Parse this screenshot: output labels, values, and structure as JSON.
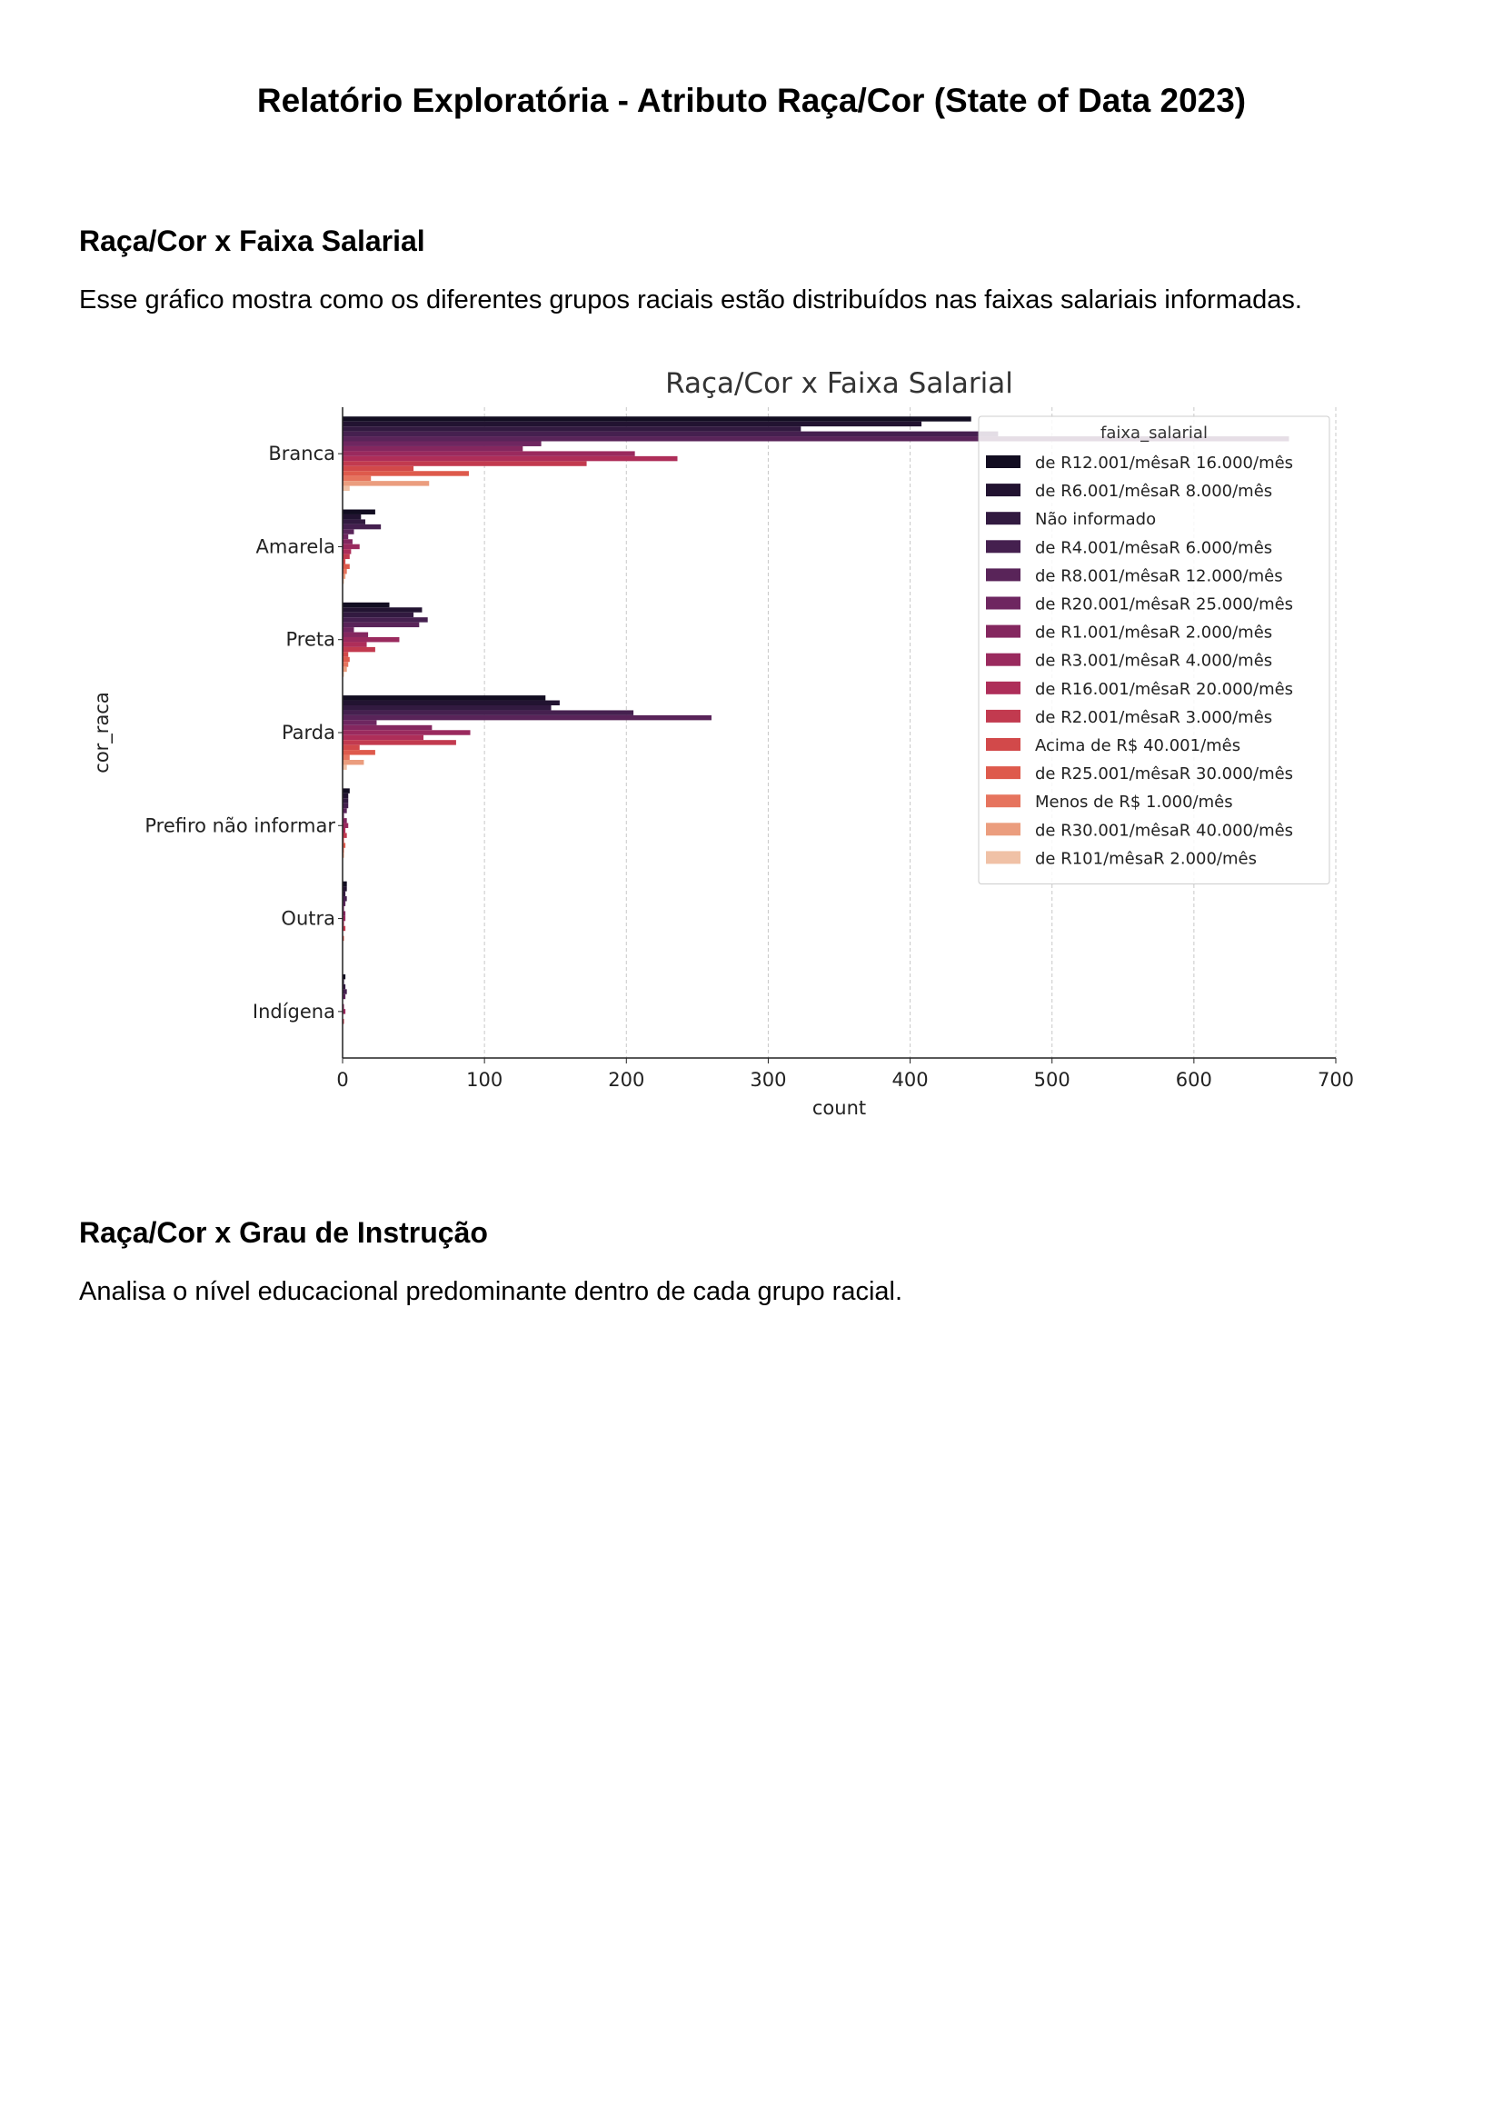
{
  "document": {
    "title": "Relatório Exploratória - Atributo Raça/Cor (State of Data 2023)",
    "sections": [
      {
        "heading": "Raça/Cor x Faixa Salarial",
        "text": "Esse gráfico mostra como os diferentes grupos raciais estão distribuídos nas faixas salariais informadas."
      },
      {
        "heading": "Raça/Cor x Grau de Instrução",
        "text": "Analisa o nível educacional predominante dentro de cada grupo racial."
      }
    ]
  },
  "chart_data": {
    "type": "bar",
    "orientation": "horizontal",
    "title": "Raça/Cor x Faixa Salarial",
    "xlabel": "count",
    "ylabel": "cor_raca",
    "xlim": [
      0,
      700
    ],
    "xticks": [
      0,
      100,
      200,
      300,
      400,
      500,
      600,
      700
    ],
    "grid": "vertical dashed",
    "legend_title": "faixa_salarial",
    "legend_position": "top-right",
    "categories": [
      "Branca",
      "Amarela",
      "Preta",
      "Parda",
      "Prefiro não informar",
      "Outra",
      "Indígena"
    ],
    "series": [
      {
        "name": "de R12.001/mêsaR 16.000/mês",
        "color": "#120d21",
        "values": [
          443,
          23,
          33,
          143,
          5,
          3,
          2
        ]
      },
      {
        "name": "de R6.001/mêsaR 8.000/mês",
        "color": "#221331",
        "values": [
          408,
          13,
          56,
          153,
          4,
          3,
          1
        ]
      },
      {
        "name": "Não informado",
        "color": "#321a40",
        "values": [
          323,
          16,
          50,
          147,
          4,
          2,
          2
        ]
      },
      {
        "name": "de R4.001/mêsaR 6.000/mês",
        "color": "#45204f",
        "values": [
          462,
          27,
          60,
          205,
          4,
          3,
          3
        ]
      },
      {
        "name": "de R8.001/mêsaR 12.000/mês",
        "color": "#592459",
        "values": [
          667,
          8,
          54,
          260,
          3,
          2,
          2
        ]
      },
      {
        "name": "de R20.001/mêsaR 25.000/mês",
        "color": "#6e2660",
        "values": [
          140,
          4,
          8,
          24,
          1,
          1,
          0
        ]
      },
      {
        "name": "de R1.001/mêsaR 2.000/mês",
        "color": "#84275f",
        "values": [
          127,
          7,
          18,
          63,
          3,
          2,
          1
        ]
      },
      {
        "name": "de R3.001/mêsaR 4.000/mês",
        "color": "#9a2a5e",
        "values": [
          206,
          12,
          40,
          90,
          4,
          2,
          2
        ]
      },
      {
        "name": "de R16.001/mêsaR 20.000/mês",
        "color": "#ae2e59",
        "values": [
          236,
          6,
          17,
          57,
          2,
          1,
          0
        ]
      },
      {
        "name": "de R2.001/mêsaR 3.000/mês",
        "color": "#c23a4f",
        "values": [
          172,
          5,
          23,
          80,
          3,
          2,
          1
        ]
      },
      {
        "name": "Acima de R$ 40.001/mês",
        "color": "#d2494a",
        "values": [
          50,
          2,
          4,
          12,
          1,
          0,
          0
        ]
      },
      {
        "name": "de R25.001/mêsaR 30.000/mês",
        "color": "#de5a4c",
        "values": [
          89,
          5,
          5,
          23,
          2,
          1,
          0
        ]
      },
      {
        "name": "Menos de R$ 1.000/mês",
        "color": "#e6745e",
        "values": [
          20,
          3,
          4,
          5,
          1,
          0,
          0
        ]
      },
      {
        "name": "de R30.001/mêsaR 40.000/mês",
        "color": "#eb9d7e",
        "values": [
          61,
          2,
          3,
          15,
          1,
          0,
          0
        ]
      },
      {
        "name": "de R101/mêsaR 2.000/mês",
        "color": "#f0c1a6",
        "values": [
          5,
          1,
          1,
          3,
          0,
          0,
          0
        ]
      }
    ]
  }
}
